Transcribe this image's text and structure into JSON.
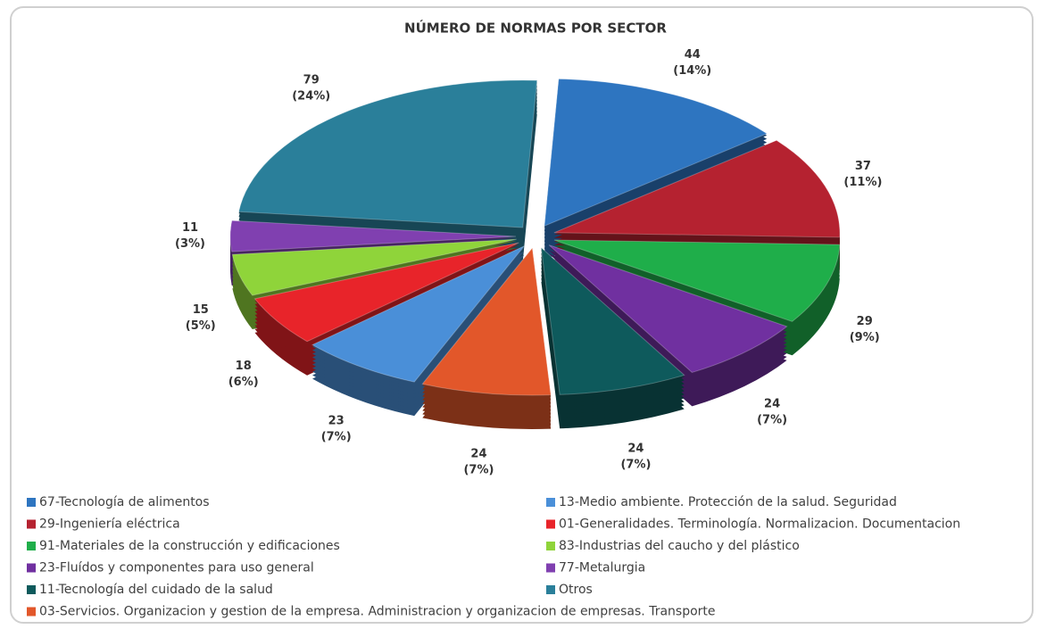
{
  "chart_data": {
    "type": "pie",
    "title": "NÚMERO DE NORMAS POR SECTOR",
    "categories": [
      "67-Tecnología de alimentos",
      "29-Ingeniería eléctrica",
      "91-Materiales de la construcción y edificaciones",
      "23-Fluídos y componentes para uso general",
      "11-Tecnología del cuidado de la salud",
      "03-Servicios. Organizacion y gestion de la empresa. Administracion y organizacion de empresas. Transporte",
      "13-Medio ambiente. Protección de la salud. Seguridad",
      "01-Generalidades. Terminología. Normalizacion. Documentacion",
      "83-Industrias del caucho y del plástico",
      "77-Metalurgia",
      "Otros"
    ],
    "values": [
      44,
      37,
      29,
      24,
      24,
      24,
      23,
      18,
      15,
      11,
      79
    ],
    "percent_labels": [
      "(14%)",
      "(11%)",
      "(9%)",
      "(7%)",
      "(7%)",
      "(7%)",
      "(7%)",
      "(6%)",
      "(5%)",
      "(3%)",
      "(24%)"
    ],
    "colors": [
      "#2e75c0",
      "#b52230",
      "#1fae4a",
      "#7030a0",
      "#0e5a5c",
      "#e2572a",
      "#4a8fd8",
      "#e8242a",
      "#8fd43a",
      "#8040b0",
      "#2a7f9a"
    ],
    "legend": "bottom"
  }
}
